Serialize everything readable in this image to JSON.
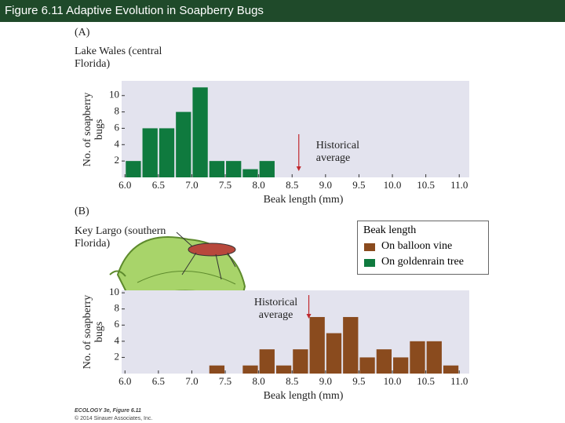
{
  "header": {
    "title": "Figure 6.11  Adaptive Evolution in Soapberry Bugs"
  },
  "chart_data": [
    {
      "type": "histogram",
      "panel": "(A)",
      "subtitle": "Lake Wales (central Florida)",
      "xlabel": "Beak length (mm)",
      "ylabel": "No. of soapberry bugs",
      "color": "#0f7a3e",
      "bins": [
        6.0,
        6.25,
        6.5,
        6.75,
        7.0,
        7.25,
        7.5,
        7.75,
        8.0,
        8.25
      ],
      "counts": [
        2,
        6,
        6,
        8,
        11,
        2,
        2,
        1,
        2
      ],
      "xlim": [
        5.95,
        11.15
      ],
      "ylim": [
        0,
        11.8
      ],
      "xticks": [
        {
          "value": 6,
          "label": "6.0"
        },
        6.5,
        {
          "value": 7,
          "label": "7.0"
        },
        7.5,
        {
          "value": 8,
          "label": "8.0"
        },
        8.5,
        {
          "value": 9,
          "label": "9.0"
        },
        9.5,
        {
          "value": 10,
          "label": "10.0"
        },
        10.5,
        {
          "value": 11,
          "label": "11.0"
        }
      ],
      "yticks": [
        2,
        4,
        6,
        8,
        10
      ],
      "grid": false,
      "annotation": {
        "text": "Historical average",
        "x": 8.6
      }
    },
    {
      "type": "histogram",
      "panel": "(B)",
      "subtitle": "Key Largo (southern Florida)",
      "xlabel": "Beak length (mm)",
      "ylabel": "No. of soapberry bugs",
      "color": "#8a4b1e",
      "bins": [
        7.25,
        7.5,
        7.75,
        8.0,
        8.25,
        8.5,
        8.75,
        9.0,
        9.25,
        9.5,
        9.75,
        10.0,
        10.25,
        10.5,
        10.75,
        11.0
      ],
      "counts": [
        1,
        0,
        1,
        3,
        1,
        3,
        7,
        5,
        7,
        2,
        3,
        2,
        4,
        4,
        1
      ],
      "xlim": [
        5.95,
        11.15
      ],
      "ylim": [
        0,
        10.3
      ],
      "xticks": [
        {
          "value": 6,
          "label": "6.0"
        },
        6.5,
        {
          "value": 7,
          "label": "7.0"
        },
        7.5,
        {
          "value": 8,
          "label": "8.0"
        },
        8.5,
        {
          "value": 9,
          "label": "9.0"
        },
        9.5,
        {
          "value": 10,
          "label": "10.0"
        },
        10.5,
        {
          "value": 11,
          "label": "11.0"
        }
      ],
      "yticks": [
        2,
        4,
        6,
        8,
        10
      ],
      "grid": false,
      "annotation": {
        "text": "Historical average",
        "x": 8.75
      }
    }
  ],
  "legend": {
    "title": "Beak length",
    "entries": [
      {
        "name": "On balloon vine",
        "color": "#8a4b1e"
      },
      {
        "name": "On goldenrain tree",
        "color": "#0f7a3e"
      }
    ]
  },
  "footer": {
    "source": "ECOLOGY 3e, Figure 6.11",
    "copyright": "© 2014 Sinauer Associates, Inc."
  }
}
